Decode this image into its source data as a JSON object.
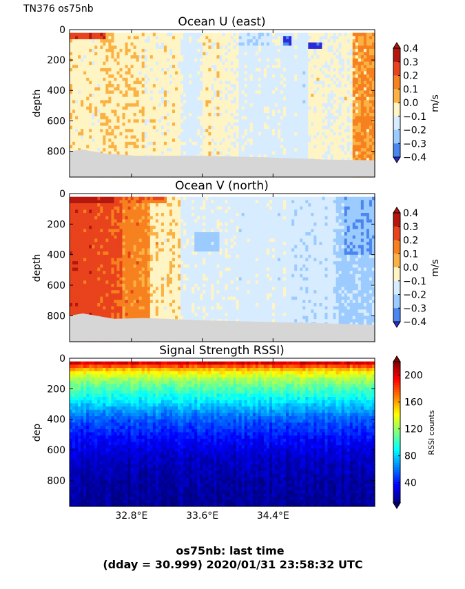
{
  "header_label": "TN376 os75nb",
  "footer": {
    "line1": "os75nb: last time",
    "line2": "(dday = 30.999) 2020/01/31 23:58:32 UTC"
  },
  "x_axis": {
    "range": [
      32.1,
      35.55
    ],
    "ticks": [
      {
        "value": 32.8,
        "label": "32.8°E"
      },
      {
        "value": 33.6,
        "label": "33.6°E"
      },
      {
        "value": 34.4,
        "label": "34.4°E"
      }
    ]
  },
  "chart_data": [
    {
      "type": "heatmap",
      "title": "Ocean U (east)",
      "ylabel": "depth",
      "ylim": [
        970,
        0
      ],
      "yticks": [
        "0",
        "200",
        "400",
        "600",
        "800"
      ],
      "colorbar": {
        "label": "m/s",
        "ticks": [
          "0.4",
          "0.3",
          "0.2",
          "0.1",
          "0.0",
          "−0.1",
          "−0.2",
          "−0.3",
          "−0.4"
        ],
        "colors": [
          "#b5170f",
          "#e8431d",
          "#f7801f",
          "#fbb244",
          "#fff4c4",
          "#d8ecff",
          "#9ccbff",
          "#4a86f0",
          "#2a2ad8"
        ]
      },
      "bands": [
        {
          "x": [
            32.1,
            32.45
          ],
          "value": 0.05
        },
        {
          "x": [
            32.45,
            32.95
          ],
          "value": 0.06
        },
        {
          "x": [
            32.95,
            33.35
          ],
          "value": 0.04
        },
        {
          "x": [
            33.35,
            33.6
          ],
          "value": -0.03
        },
        {
          "x": [
            33.6,
            34.0
          ],
          "value": 0.03
        },
        {
          "x": [
            34.0,
            34.4
          ],
          "value": -0.03
        },
        {
          "x": [
            34.4,
            34.8
          ],
          "value": -0.04
        },
        {
          "x": [
            34.8,
            35.3
          ],
          "value": 0.02
        },
        {
          "x": [
            35.3,
            35.55
          ],
          "value": 0.12
        }
      ],
      "surface_patches": [
        {
          "x": [
            32.1,
            32.5
          ],
          "depth": [
            20,
            60
          ],
          "value": 0.28
        },
        {
          "x": [
            34.0,
            34.35
          ],
          "depth": [
            30,
            110
          ],
          "value": -0.08
        },
        {
          "x": [
            34.5,
            34.6
          ],
          "depth": [
            40,
            110
          ],
          "value": -0.32
        },
        {
          "x": [
            34.8,
            34.95
          ],
          "depth": [
            80,
            130
          ],
          "value": -0.35
        }
      ],
      "bottom_depth": [
        {
          "x": 32.1,
          "depth": 800
        },
        {
          "x": 32.25,
          "depth": 790
        },
        {
          "x": 32.5,
          "depth": 815
        },
        {
          "x": 32.85,
          "depth": 830
        },
        {
          "x": 33.6,
          "depth": 830
        },
        {
          "x": 34.3,
          "depth": 840
        },
        {
          "x": 35.0,
          "depth": 855
        },
        {
          "x": 35.55,
          "depth": 860
        }
      ]
    },
    {
      "type": "heatmap",
      "title": "Ocean V (north)",
      "ylabel": "depth",
      "ylim": [
        970,
        0
      ],
      "yticks": [
        "0",
        "200",
        "400",
        "600",
        "800"
      ],
      "colorbar": {
        "label": "m/s",
        "ticks": [
          "0.4",
          "0.3",
          "0.2",
          "0.1",
          "0.0",
          "−0.1",
          "−0.2",
          "−0.3",
          "−0.4"
        ],
        "colors": [
          "#b5170f",
          "#e8431d",
          "#f7801f",
          "#fbb244",
          "#fff4c4",
          "#d8ecff",
          "#9ccbff",
          "#4a86f0",
          "#2a2ad8"
        ]
      },
      "bands": [
        {
          "x": [
            32.1,
            32.45
          ],
          "value": 0.25
        },
        {
          "x": [
            32.45,
            32.7
          ],
          "value": 0.22
        },
        {
          "x": [
            32.7,
            33.0
          ],
          "value": 0.15
        },
        {
          "x": [
            33.0,
            33.35
          ],
          "value": 0.06
        },
        {
          "x": [
            33.35,
            34.0
          ],
          "value": -0.03
        },
        {
          "x": [
            34.0,
            34.6
          ],
          "value": -0.04
        },
        {
          "x": [
            34.6,
            35.1
          ],
          "value": -0.06
        },
        {
          "x": [
            35.1,
            35.55
          ],
          "value": -0.12
        }
      ],
      "surface_patches": [
        {
          "x": [
            32.1,
            32.6
          ],
          "depth": [
            20,
            70
          ],
          "value": 0.35
        },
        {
          "x": [
            32.7,
            33.2
          ],
          "depth": [
            20,
            60
          ],
          "value": 0.2
        },
        {
          "x": [
            33.5,
            33.8
          ],
          "depth": [
            250,
            380
          ],
          "value": -0.15
        },
        {
          "x": [
            35.2,
            35.55
          ],
          "depth": [
            20,
            400
          ],
          "value": -0.18
        }
      ],
      "bottom_depth": [
        {
          "x": 32.1,
          "depth": 800
        },
        {
          "x": 32.25,
          "depth": 785
        },
        {
          "x": 32.6,
          "depth": 820
        },
        {
          "x": 32.95,
          "depth": 815
        },
        {
          "x": 33.6,
          "depth": 830
        },
        {
          "x": 34.3,
          "depth": 840
        },
        {
          "x": 35.0,
          "depth": 850
        },
        {
          "x": 35.55,
          "depth": 860
        }
      ]
    },
    {
      "type": "heatmap",
      "title": "Signal Strength RSSI)",
      "ylabel": "dep",
      "ylim": [
        970,
        0
      ],
      "yticks": [
        "0",
        "200",
        "400",
        "600",
        "800"
      ],
      "colorbar": {
        "label": "RSSI counts",
        "ticks": [
          "200",
          "160",
          "120",
          "80",
          "40"
        ],
        "range": [
          10,
          220
        ]
      },
      "depth_profile": [
        {
          "depth": 20,
          "value": 215
        },
        {
          "depth": 45,
          "value": 185
        },
        {
          "depth": 80,
          "value": 150
        },
        {
          "depth": 130,
          "value": 125
        },
        {
          "depth": 200,
          "value": 105
        },
        {
          "depth": 300,
          "value": 80
        },
        {
          "depth": 400,
          "value": 55
        },
        {
          "depth": 520,
          "value": 38
        },
        {
          "depth": 650,
          "value": 25
        },
        {
          "depth": 800,
          "value": 18
        },
        {
          "depth": 970,
          "value": 14
        }
      ]
    }
  ]
}
